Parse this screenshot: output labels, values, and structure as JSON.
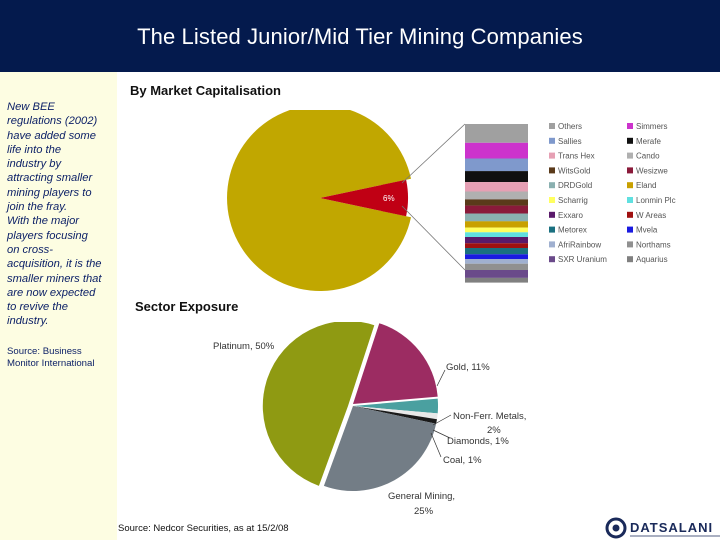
{
  "header": {
    "title": "The Listed Junior/Mid Tier Mining Companies"
  },
  "sidebar": {
    "text_lines": [
      "New BEE",
      "regulations (2002)",
      "have added some",
      "life into the",
      "industry by",
      "attracting smaller",
      "mining players to",
      "join the fray.",
      "With the major",
      "players focusing",
      "on cross-",
      "acquisition, it is the",
      "smaller miners that",
      "are now expected",
      "to revive the",
      "industry."
    ],
    "source_lines": [
      "Source: Business",
      "Monitor International"
    ]
  },
  "market_cap": {
    "title": "By Market Capitalisation",
    "highlight_label": "6%",
    "colors": {
      "main": "#c1a700",
      "slice": "#c00014"
    },
    "legend": [
      {
        "label": "Others",
        "color": "#a0a0a0"
      },
      {
        "label": "Simmers",
        "color": "#cc33cc"
      },
      {
        "label": "Sallies",
        "color": "#7f99cc"
      },
      {
        "label": "Merafe",
        "color": "#101010"
      },
      {
        "label": "Trans Hex",
        "color": "#e6a0b4"
      },
      {
        "label": "Cando",
        "color": "#b0b0b0"
      },
      {
        "label": "WitsGold",
        "color": "#5a3a1a"
      },
      {
        "label": "Wesizwe",
        "color": "#8a1a3a"
      },
      {
        "label": "DRDGold",
        "color": "#8ab0b0"
      },
      {
        "label": "Eland",
        "color": "#c8a000"
      },
      {
        "label": "Scharrig",
        "color": "#ffff60"
      },
      {
        "label": "Lonmin Plc",
        "color": "#60e0e0"
      },
      {
        "label": "Exxaro",
        "color": "#5a1a6a"
      },
      {
        "label": "W Areas",
        "color": "#a01010"
      },
      {
        "label": "Metorex",
        "color": "#1a7080"
      },
      {
        "label": "Mvela",
        "color": "#1a1ae0"
      },
      {
        "label": "AfriRainbow",
        "color": "#a0b0d0"
      },
      {
        "label": "Northams",
        "color": "#909090"
      },
      {
        "label": "SXR Uranium",
        "color": "#6a4a8a"
      },
      {
        "label": "Aquarius",
        "color": "#808080"
      }
    ]
  },
  "sector": {
    "title": "Sector Exposure",
    "colors": {
      "platinum": "#8f9a12",
      "gold": "#9c2c62",
      "non_ferr": "#4aa0a0",
      "diamonds": "#e8e8e8",
      "coal": "#1a1a1a",
      "general_mining": "#737d86"
    },
    "labels": {
      "platinum": "Platinum, 50%",
      "gold": "Gold, 11%",
      "non_ferr_1": "Non-Ferr. Metals,",
      "non_ferr_2": "2%",
      "diamonds": "Diamonds, 1%",
      "coal": "Coal, 1%",
      "general_1": "General Mining,",
      "general_2": "25%"
    }
  },
  "footer": {
    "source": "Source: Nedcor Securities, as at 15/2/08",
    "logo_text": "DATSALANI"
  }
}
